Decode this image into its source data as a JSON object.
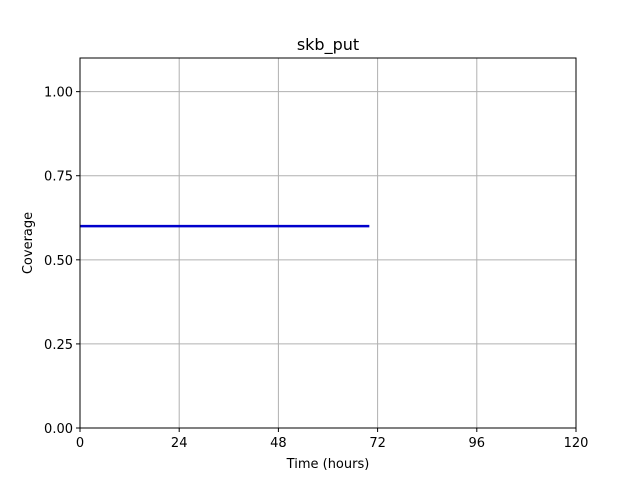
{
  "chart_data": {
    "type": "line",
    "title": "skb_put",
    "xlabel": "Time (hours)",
    "ylabel": "Coverage",
    "xlim": [
      0,
      120
    ],
    "ylim": [
      0,
      1.1
    ],
    "xticks": [
      0,
      24,
      48,
      72,
      96,
      120
    ],
    "xtick_labels": [
      "0",
      "24",
      "48",
      "72",
      "96",
      "120"
    ],
    "yticks": [
      0,
      0.25,
      0.5,
      0.75,
      1.0
    ],
    "ytick_labels": [
      "0.00",
      "0.25",
      "0.50",
      "0.75",
      "1.00"
    ],
    "grid": true,
    "series": [
      {
        "color": "#0000cc",
        "x": [
          0,
          70
        ],
        "y": [
          0.6,
          0.6
        ]
      }
    ]
  }
}
